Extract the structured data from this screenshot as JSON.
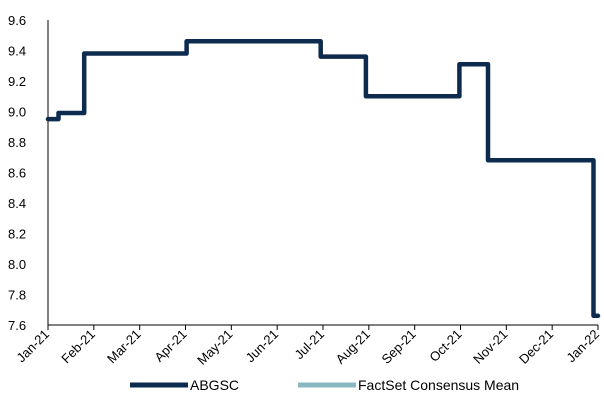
{
  "chart_data": {
    "type": "line",
    "title": "",
    "xlabel": "",
    "ylabel": "",
    "ylim": [
      7.6,
      9.6
    ],
    "yticks": [
      "9.6",
      "9.4",
      "9.2",
      "9.0",
      "8.8",
      "8.6",
      "8.4",
      "8.2",
      "8.0",
      "7.8",
      "7.6"
    ],
    "xticks": [
      "Jan-21",
      "Feb-21",
      "Mar-21",
      "Apr-21",
      "May-21",
      "Jun-21",
      "Jul-21",
      "Aug-21",
      "Sep-21",
      "Oct-21",
      "Nov-21",
      "Dec-21",
      "Jan-22"
    ],
    "grid": false,
    "legend_position": "bottom",
    "series": [
      {
        "name": "ABGSC",
        "color": "#0d2b4e",
        "step": true,
        "points": [
          [
            "2021-01-01",
            8.95
          ],
          [
            "2021-01-08",
            8.99
          ],
          [
            "2021-01-25",
            9.38
          ],
          [
            "2021-04-03",
            9.46
          ],
          [
            "2021-07-01",
            9.36
          ],
          [
            "2021-07-31",
            9.1
          ],
          [
            "2021-10-01",
            9.31
          ],
          [
            "2021-10-20",
            8.68
          ],
          [
            "2021-12-29",
            7.66
          ],
          [
            "2022-01-01",
            7.66
          ]
        ]
      },
      {
        "name": "FactSet Consensus Mean",
        "color": "#8ab8c2",
        "points": []
      }
    ]
  }
}
